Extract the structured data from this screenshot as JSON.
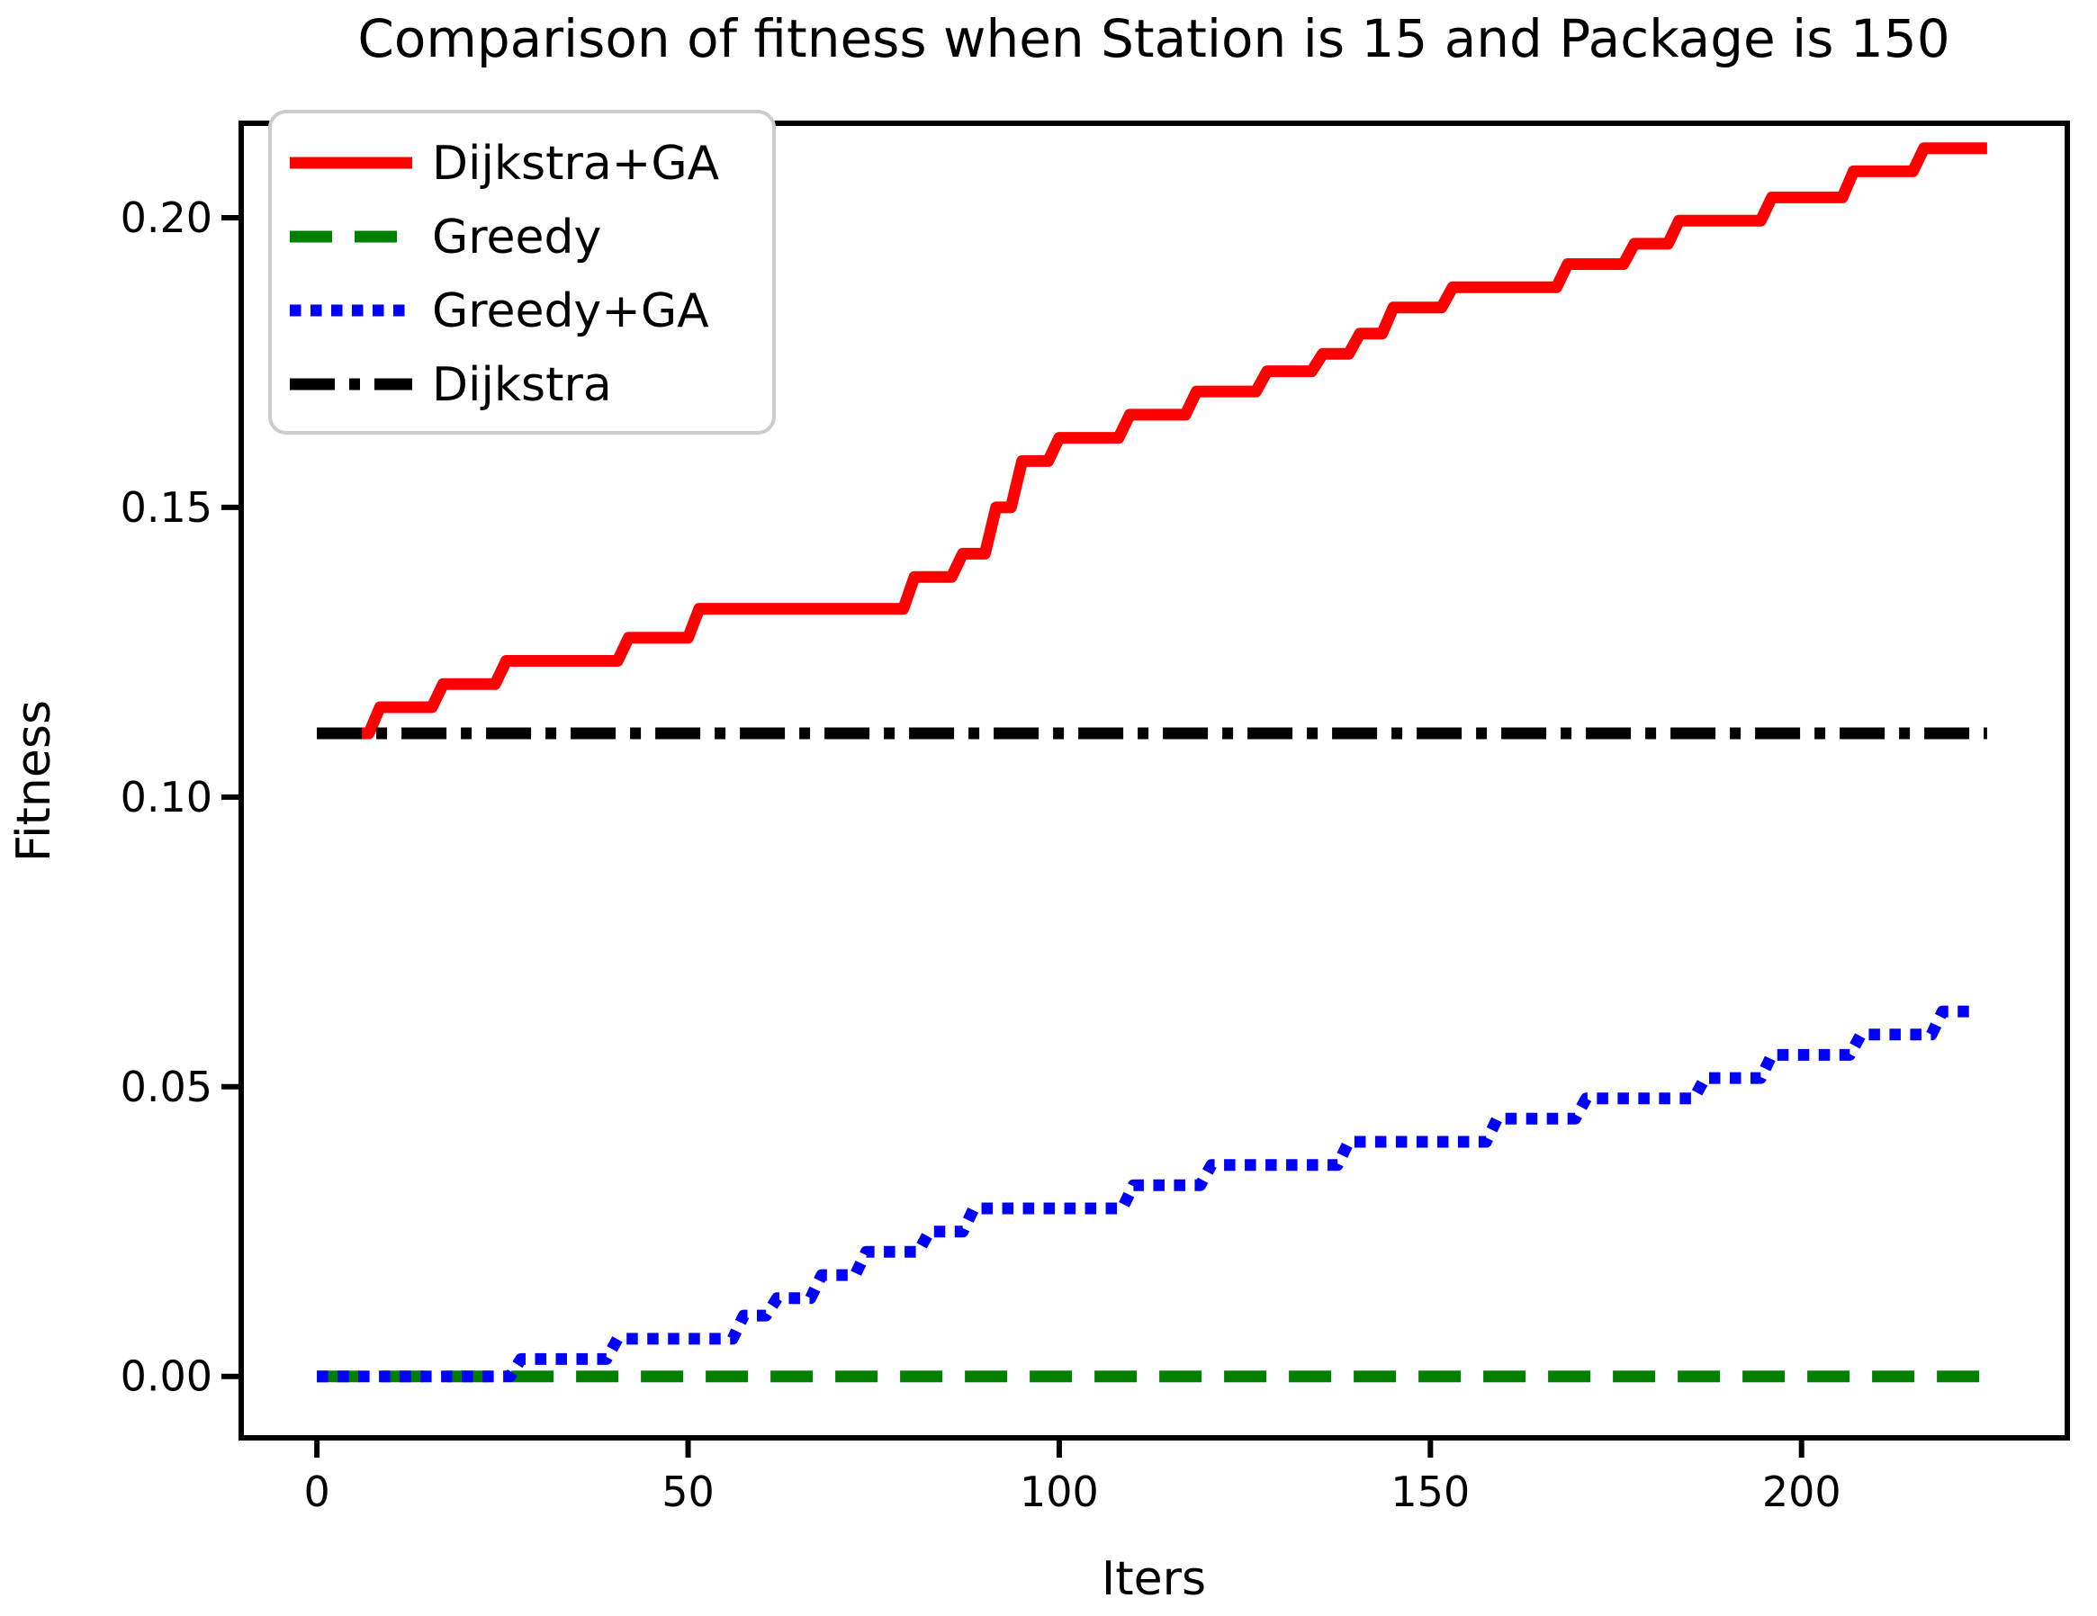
{
  "chart_data": {
    "type": "line",
    "title": "Comparison of fitness when Station is 15 and Package is 150",
    "xlabel": "Iters",
    "ylabel": "Fitness",
    "xlim": [
      -10.2,
      235.8
    ],
    "ylim": [
      -0.0106,
      0.2163
    ],
    "grid": false,
    "legend_position": "upper left",
    "legend_border_color": "#cccccc",
    "x_ticks": [
      {
        "value": 0,
        "label": "0"
      },
      {
        "value": 50,
        "label": "50"
      },
      {
        "value": 100,
        "label": "100"
      },
      {
        "value": 150,
        "label": "150"
      },
      {
        "value": 200,
        "label": "200"
      }
    ],
    "y_ticks": [
      {
        "value": 0.0,
        "label": "0.00"
      },
      {
        "value": 0.05,
        "label": "0.05"
      },
      {
        "value": 0.1,
        "label": "0.10"
      },
      {
        "value": 0.15,
        "label": "0.15"
      },
      {
        "value": 0.2,
        "label": "0.20"
      }
    ],
    "series": [
      {
        "name": "Dijkstra+GA",
        "color": "#ff0000",
        "style": "solid",
        "points": [
          [
            0,
            0.111
          ],
          [
            7,
            0.111
          ],
          [
            8.5,
            0.1155
          ],
          [
            15.5,
            0.1155
          ],
          [
            17,
            0.1195
          ],
          [
            24,
            0.1195
          ],
          [
            25.5,
            0.1235
          ],
          [
            40.5,
            0.1235
          ],
          [
            42,
            0.1275
          ],
          [
            50,
            0.1275
          ],
          [
            51.5,
            0.1325
          ],
          [
            79,
            0.1325
          ],
          [
            80.5,
            0.138
          ],
          [
            85.5,
            0.138
          ],
          [
            87,
            0.142
          ],
          [
            90,
            0.142
          ],
          [
            91.5,
            0.15
          ],
          [
            93.5,
            0.15
          ],
          [
            95,
            0.158
          ],
          [
            98.5,
            0.158
          ],
          [
            100,
            0.162
          ],
          [
            108,
            0.162
          ],
          [
            109.5,
            0.166
          ],
          [
            117,
            0.166
          ],
          [
            118.5,
            0.17
          ],
          [
            126.5,
            0.17
          ],
          [
            128,
            0.1735
          ],
          [
            134,
            0.1735
          ],
          [
            135.5,
            0.1765
          ],
          [
            139,
            0.1765
          ],
          [
            140.5,
            0.18
          ],
          [
            143.5,
            0.18
          ],
          [
            145,
            0.1845
          ],
          [
            151.5,
            0.1845
          ],
          [
            153,
            0.188
          ],
          [
            167,
            0.188
          ],
          [
            168.5,
            0.192
          ],
          [
            176,
            0.192
          ],
          [
            177.5,
            0.1955
          ],
          [
            182,
            0.1955
          ],
          [
            183.5,
            0.1995
          ],
          [
            194.5,
            0.1995
          ],
          [
            196,
            0.2035
          ],
          [
            205.5,
            0.2035
          ],
          [
            207,
            0.208
          ],
          [
            215,
            0.208
          ],
          [
            216.5,
            0.212
          ],
          [
            225,
            0.212
          ]
        ]
      },
      {
        "name": "Greedy",
        "color": "#008000",
        "style": "dashed",
        "points": [
          [
            0,
            0
          ],
          [
            225,
            0
          ]
        ]
      },
      {
        "name": "Greedy+GA",
        "color": "#0000ff",
        "style": "dotted",
        "points": [
          [
            0,
            0
          ],
          [
            26,
            0
          ],
          [
            27.5,
            0.003
          ],
          [
            39,
            0.003
          ],
          [
            40.5,
            0.0065
          ],
          [
            56,
            0.0065
          ],
          [
            57.5,
            0.0105
          ],
          [
            60.5,
            0.0105
          ],
          [
            62,
            0.0135
          ],
          [
            66.5,
            0.0135
          ],
          [
            68,
            0.0175
          ],
          [
            72.5,
            0.0175
          ],
          [
            74,
            0.0215
          ],
          [
            81,
            0.0215
          ],
          [
            82.5,
            0.025
          ],
          [
            87,
            0.025
          ],
          [
            88.5,
            0.029
          ],
          [
            108.5,
            0.029
          ],
          [
            110,
            0.033
          ],
          [
            119,
            0.033
          ],
          [
            120.5,
            0.0365
          ],
          [
            137.5,
            0.0365
          ],
          [
            139,
            0.0405
          ],
          [
            157.5,
            0.0405
          ],
          [
            159,
            0.0445
          ],
          [
            169.5,
            0.0445
          ],
          [
            171,
            0.048
          ],
          [
            185.5,
            0.048
          ],
          [
            187,
            0.0515
          ],
          [
            194.5,
            0.0515
          ],
          [
            196,
            0.0555
          ],
          [
            206.5,
            0.0555
          ],
          [
            208,
            0.059
          ],
          [
            217.5,
            0.059
          ],
          [
            219,
            0.063
          ],
          [
            223.5,
            0.063
          ]
        ]
      },
      {
        "name": "Dijkstra",
        "color": "#000000",
        "style": "dashdot",
        "points": [
          [
            0,
            0.111
          ],
          [
            225,
            0.111
          ]
        ]
      }
    ]
  }
}
